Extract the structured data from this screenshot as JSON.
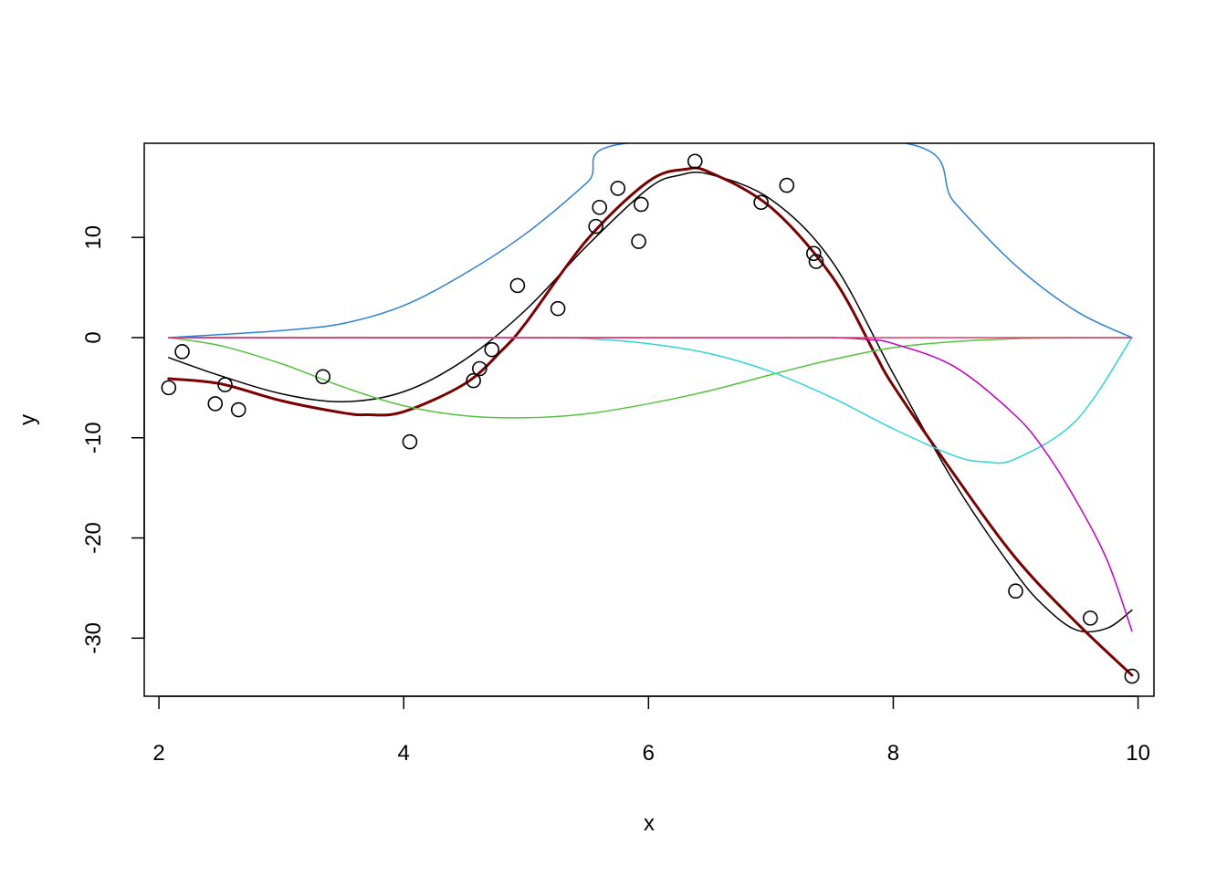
{
  "chart_data": {
    "type": "scatter",
    "title": "",
    "xlabel": "x",
    "ylabel": "y",
    "xlim": [
      1.88,
      10.13
    ],
    "ylim": [
      -35.8,
      19.4
    ],
    "x_ticks": [
      2,
      4,
      6,
      8,
      10
    ],
    "x_tick_labels": [
      "2",
      "4",
      "6",
      "8",
      "10"
    ],
    "y_ticks": [
      -30,
      -20,
      -10,
      0,
      10
    ],
    "y_tick_labels": [
      "-30",
      "-20",
      "-10",
      "0",
      "10"
    ],
    "grid": false,
    "legend": "none",
    "points": {
      "x": [
        2.08,
        2.19,
        2.46,
        2.54,
        2.65,
        3.34,
        4.05,
        4.57,
        4.62,
        4.72,
        4.93,
        5.26,
        5.57,
        5.6,
        5.75,
        5.92,
        5.94,
        6.38,
        6.92,
        7.13,
        7.35,
        7.37,
        9.0,
        9.61,
        9.95
      ],
      "y": [
        -5.0,
        -1.4,
        -6.6,
        -4.7,
        -7.2,
        -3.9,
        -10.4,
        -4.3,
        -3.1,
        -1.2,
        5.2,
        2.9,
        11.1,
        13.0,
        14.9,
        9.6,
        13.3,
        17.6,
        13.5,
        15.2,
        8.4,
        7.6,
        -25.3,
        -28.0,
        -33.8
      ]
    },
    "series": [
      {
        "color": "#000000",
        "stroke": 1.5,
        "x": [
          2.08,
          2.5,
          3.0,
          3.5,
          4.0,
          4.5,
          5.0,
          5.5,
          6.0,
          6.25,
          6.5,
          7.0,
          7.5,
          8.0,
          8.5,
          9.0,
          9.25,
          9.5,
          9.75,
          9.95
        ],
        "y": [
          -2.0,
          -3.8,
          -5.6,
          -6.4,
          -5.4,
          -2.2,
          2.8,
          9.2,
          14.9,
          16.2,
          16.3,
          13.8,
          7.6,
          -3.6,
          -14.5,
          -23.5,
          -27.0,
          -29.2,
          -29.0,
          -27.2
        ]
      },
      {
        "color": "#7B0000",
        "stroke": 3,
        "x": [
          2.08,
          2.5,
          3.0,
          3.5,
          3.7,
          4.0,
          4.5,
          4.8,
          5.0,
          5.5,
          6.0,
          6.3,
          6.5,
          7.0,
          7.5,
          7.85,
          8.0,
          8.5,
          9.0,
          9.5,
          9.95
        ],
        "y": [
          -4.1,
          -4.6,
          -6.3,
          -7.5,
          -7.7,
          -7.4,
          -4.6,
          -1.3,
          1.5,
          9.8,
          15.6,
          16.8,
          16.5,
          13.0,
          6.1,
          -1.6,
          -4.8,
          -13.7,
          -22.0,
          -28.5,
          -33.7
        ]
      },
      {
        "color": "#2E80D6",
        "stroke": 1.5,
        "x": [
          2.08,
          2.5,
          3.0,
          3.5,
          4.0,
          4.5,
          5.0,
          5.5,
          5.82,
          8.1,
          8.5,
          9.0,
          9.5,
          9.95
        ],
        "y": [
          0.0,
          0.3,
          0.7,
          1.4,
          3.2,
          6.4,
          10.4,
          15.5,
          19.4,
          19.4,
          13.5,
          7.2,
          2.6,
          0.0
        ]
      },
      {
        "color": "#53C43E",
        "stroke": 1.5,
        "x": [
          2.08,
          2.5,
          3.0,
          3.5,
          4.0,
          4.5,
          5.0,
          5.5,
          6.0,
          6.5,
          7.0,
          7.5,
          8.0,
          8.5,
          9.0,
          9.5,
          9.95
        ],
        "y": [
          0.0,
          -0.8,
          -2.6,
          -4.9,
          -6.8,
          -7.8,
          -8.0,
          -7.6,
          -6.6,
          -5.3,
          -3.7,
          -2.2,
          -1.0,
          -0.4,
          -0.1,
          0.0,
          0.0
        ]
      },
      {
        "color": "#2FD6D6",
        "stroke": 1.5,
        "x": [
          2.08,
          5.0,
          5.5,
          6.0,
          6.5,
          7.0,
          7.5,
          8.0,
          8.5,
          8.75,
          9.0,
          9.5,
          9.95
        ],
        "y": [
          0.0,
          0.0,
          -0.1,
          -0.6,
          -1.6,
          -3.4,
          -6.0,
          -9.1,
          -11.8,
          -12.4,
          -12.1,
          -8.2,
          0.0
        ]
      },
      {
        "color": "#C400C4",
        "stroke": 1.5,
        "x": [
          2.08,
          7.0,
          7.5,
          7.8,
          8.0,
          8.5,
          9.0,
          9.25,
          9.5,
          9.75,
          9.95
        ],
        "y": [
          0.0,
          0.0,
          0.0,
          -0.2,
          -0.6,
          -2.9,
          -7.8,
          -11.5,
          -16.4,
          -22.3,
          -29.3
        ]
      },
      {
        "color": "#E03A6A",
        "stroke": 1.5,
        "x": [
          2.08,
          9.95
        ],
        "y": [
          0.0,
          0.0
        ]
      }
    ]
  }
}
